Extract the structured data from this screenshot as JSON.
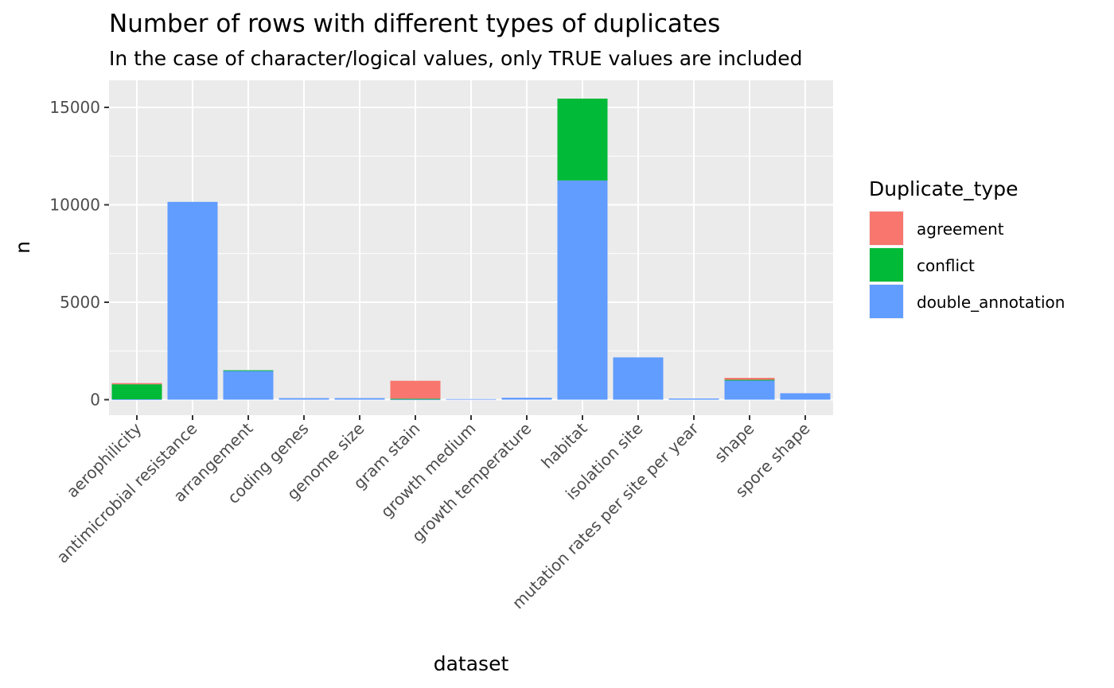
{
  "chart_data": {
    "type": "bar",
    "stacked": true,
    "title": "Number of rows with different types of duplicates",
    "subtitle": "In the case of character/logical values, only TRUE values are included",
    "xlabel": "dataset",
    "ylabel": "n",
    "ylim": [
      -750,
      16200
    ],
    "yticks": [
      0,
      5000,
      10000,
      15000
    ],
    "grid": true,
    "legend_position": "right",
    "legend_title": "Duplicate_type",
    "categories": [
      "aerophilicity",
      "antimicrobial resistance",
      "arrangement",
      "coding genes",
      "genome size",
      "gram stain",
      "growth medium",
      "growth temperature",
      "habitat",
      "isolation site",
      "mutation rates per site per year",
      "shape",
      "spore shape"
    ],
    "series": [
      {
        "name": "agreement",
        "color": "#F8766D",
        "values": [
          60,
          0,
          0,
          0,
          0,
          920,
          0,
          0,
          0,
          0,
          0,
          100,
          0
        ]
      },
      {
        "name": "conflict",
        "color": "#00BA38",
        "values": [
          770,
          0,
          40,
          0,
          0,
          40,
          0,
          0,
          4200,
          0,
          0,
          40,
          0
        ]
      },
      {
        "name": "double_annotation",
        "color": "#619CFF",
        "values": [
          20,
          10150,
          1470,
          80,
          80,
          10,
          30,
          100,
          11250,
          2170,
          60,
          980,
          330
        ]
      }
    ]
  }
}
